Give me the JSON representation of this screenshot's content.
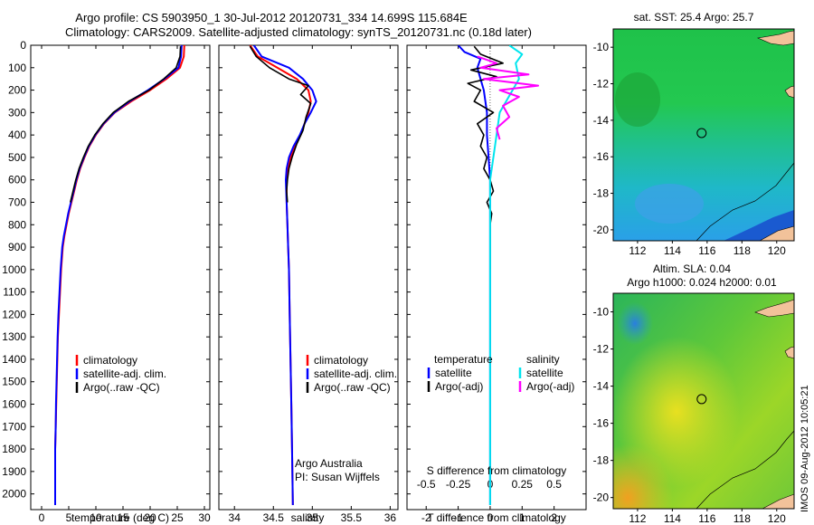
{
  "header": {
    "line1": "Argo profile: CS 5903950_1 30-Jul-2012 20120731_334 14.699S 115.684E",
    "line2": "Climatology: CARS2009. Satellite-adjusted climatology: synTS_20120731.nc (0.18d later)"
  },
  "colors": {
    "climatology": "#ff0000",
    "satellite": "#0000ff",
    "argo": "#000000",
    "sal_satellite": "#00e5ee",
    "sal_argo": "#ff00ff",
    "land": "#f2c29a"
  },
  "chart_data": [
    {
      "type": "line",
      "name": "temperature-profile",
      "xlabel": "temperature (deg C)",
      "ylabel": "",
      "xlim": [
        -2,
        31
      ],
      "ylim": [
        2070,
        0
      ],
      "xticks": [
        "0",
        "5",
        "10",
        "15",
        "20",
        "25",
        "30"
      ],
      "xtick_values": [
        0,
        5,
        10,
        15,
        20,
        25,
        30
      ],
      "yticks": [
        "0",
        "100",
        "200",
        "300",
        "400",
        "500",
        "600",
        "700",
        "800",
        "900",
        "1000",
        "1100",
        "1200",
        "1300",
        "1400",
        "1500",
        "1600",
        "1700",
        "1800",
        "1900",
        "2000"
      ],
      "ytick_values": [
        0,
        100,
        200,
        300,
        400,
        500,
        600,
        700,
        800,
        900,
        1000,
        1100,
        1200,
        1300,
        1400,
        1500,
        1600,
        1700,
        1800,
        1900,
        2000
      ],
      "legend": [
        "climatology",
        "satellite-adj. clim.",
        "Argo(..raw -QC)"
      ],
      "series": [
        {
          "name": "climatology",
          "color_key": "climatology",
          "x": [
            26.3,
            26.2,
            25.5,
            23,
            20,
            16.5,
            13.5,
            11.5,
            10,
            8.8,
            7.9,
            7.1,
            6.5,
            6.0,
            5.5,
            5.0,
            4.6,
            4.2,
            3.9,
            3.6,
            3.4,
            3.2,
            3.0,
            2.9,
            2.8,
            2.7,
            2.6,
            2.5,
            2.5,
            2.5
          ],
          "y": [
            0,
            50,
            100,
            150,
            200,
            250,
            300,
            350,
            400,
            450,
            500,
            550,
            600,
            650,
            700,
            750,
            800,
            850,
            900,
            1000,
            1100,
            1200,
            1300,
            1400,
            1500,
            1600,
            1700,
            1800,
            1900,
            2050
          ]
        },
        {
          "name": "satellite",
          "color_key": "satellite",
          "x": [
            25.8,
            25.7,
            25.2,
            22.6,
            19.6,
            16.2,
            13.4,
            11.4,
            9.9,
            8.7,
            7.8,
            7.0,
            6.4,
            5.9,
            5.4,
            4.9,
            4.5,
            4.1,
            3.8,
            3.5,
            3.3,
            3.1,
            2.95,
            2.85,
            2.75,
            2.65,
            2.6,
            2.5,
            2.5,
            2.5
          ],
          "y": [
            0,
            50,
            100,
            150,
            200,
            250,
            300,
            350,
            400,
            450,
            500,
            550,
            600,
            650,
            700,
            750,
            800,
            850,
            900,
            1000,
            1100,
            1200,
            1300,
            1400,
            1500,
            1600,
            1700,
            1800,
            1900,
            2050
          ]
        },
        {
          "name": "argo",
          "color_key": "argo",
          "x": [
            25.6,
            25.5,
            24.8,
            22.5,
            19.8,
            16,
            13.2,
            11.3,
            9.8,
            8.6,
            7.7,
            6.9,
            6.3,
            5.8,
            5.3
          ],
          "y": [
            5,
            50,
            100,
            150,
            200,
            250,
            300,
            350,
            400,
            450,
            500,
            550,
            600,
            650,
            700
          ]
        }
      ]
    },
    {
      "type": "line",
      "name": "salinity-profile",
      "xlabel": "salinity",
      "xlim": [
        33.8,
        36.1
      ],
      "ylim": [
        2070,
        0
      ],
      "xticks": [
        "34",
        "34.5",
        "35",
        "35.5",
        "36"
      ],
      "xtick_values": [
        34,
        34.5,
        35,
        35.5,
        36
      ],
      "legend": [
        "climatology",
        "satellite-adj. clim.",
        "Argo(..raw -QC)"
      ],
      "annotation": [
        "Argo Australia",
        "PI: Susan Wijffels"
      ],
      "series": [
        {
          "name": "climatology",
          "color_key": "climatology",
          "x": [
            34.2,
            34.3,
            34.55,
            34.8,
            34.95,
            34.98,
            34.95,
            34.9,
            34.85,
            34.78,
            34.72,
            34.69,
            34.67,
            34.67,
            34.68,
            34.69,
            34.7,
            34.71,
            34.72,
            34.73,
            34.74,
            34.75
          ],
          "y": [
            0,
            50,
            100,
            150,
            200,
            250,
            300,
            350,
            400,
            450,
            500,
            550,
            600,
            700,
            800,
            900,
            1000,
            1200,
            1400,
            1600,
            1800,
            2050
          ]
        },
        {
          "name": "satellite",
          "color_key": "satellite",
          "x": [
            34.25,
            34.35,
            34.7,
            34.88,
            35.0,
            35.05,
            34.98,
            34.9,
            34.84,
            34.76,
            34.7,
            34.67,
            34.66,
            34.67,
            34.68,
            34.69,
            34.7,
            34.71,
            34.72,
            34.73,
            34.74,
            34.75
          ],
          "y": [
            0,
            50,
            100,
            150,
            200,
            250,
            300,
            350,
            400,
            450,
            500,
            550,
            600,
            700,
            800,
            900,
            1000,
            1200,
            1400,
            1600,
            1800,
            2050
          ]
        },
        {
          "name": "argo",
          "color_key": "argo",
          "x": [
            34.2,
            34.28,
            34.45,
            34.7,
            34.95,
            34.85,
            34.98,
            34.92,
            34.88,
            34.8,
            34.74,
            34.7,
            34.68,
            34.67,
            34.68
          ],
          "y": [
            5,
            50,
            100,
            150,
            180,
            220,
            260,
            320,
            380,
            440,
            500,
            550,
            600,
            650,
            700
          ]
        }
      ]
    },
    {
      "type": "line",
      "name": "difference-profile",
      "xlabel": "T difference from climatology",
      "top_xlabel": "S difference from climatology",
      "xlim": [
        -2.6,
        3.0
      ],
      "ylim": [
        2070,
        0
      ],
      "xticks": [
        "-2",
        "-1",
        "0",
        "1",
        "2"
      ],
      "xtick_values": [
        -2,
        -1,
        0,
        1,
        2
      ],
      "top_xticks": [
        "-0.5",
        "-0.25",
        "0",
        "0.25",
        "0.5"
      ],
      "top_xtick_values": [
        -2,
        -1,
        0,
        1,
        2
      ],
      "legend_temperature": {
        "title": "temperature",
        "items": [
          "satellite",
          "Argo(-adj)"
        ]
      },
      "legend_salinity": {
        "title": "salinity",
        "items": [
          "satellite",
          "Argo(-adj)"
        ]
      },
      "series": [
        {
          "name": "temperature-satellite",
          "color_key": "satellite",
          "x": [
            -1.0,
            -0.8,
            -0.3,
            -0.4,
            -0.3,
            -0.2,
            -0.1,
            -0.1,
            -0.05,
            0,
            0,
            0,
            0,
            0,
            0
          ],
          "y": [
            0,
            30,
            60,
            100,
            150,
            200,
            300,
            400,
            500,
            600,
            800,
            1000,
            1400,
            1800,
            2050
          ]
        },
        {
          "name": "temperature-argo",
          "color_key": "argo",
          "x": [
            -0.5,
            -0.3,
            0.4,
            -0.6,
            0.2,
            -0.7,
            -0.3,
            -0.5,
            0.1,
            -0.4,
            -0.2,
            -0.3,
            -0.1,
            -0.2,
            0,
            0.1,
            -0.1,
            0.05,
            0,
            0,
            0
          ],
          "y": [
            5,
            40,
            80,
            110,
            140,
            170,
            200,
            250,
            300,
            350,
            400,
            450,
            500,
            550,
            600,
            650,
            700,
            750,
            800,
            900,
            1000
          ]
        },
        {
          "name": "salinity-satellite",
          "color_key": "sal_satellite",
          "x": [
            0.6,
            1.0,
            0.8,
            0.9,
            0.7,
            0.5,
            0.3,
            0.2,
            0.1,
            0,
            0,
            0,
            0
          ],
          "y": [
            0,
            40,
            80,
            150,
            200,
            250,
            300,
            400,
            500,
            600,
            800,
            1400,
            2050
          ]
        },
        {
          "name": "salinity-argo",
          "color_key": "sal_argo",
          "x": [
            -0.4,
            0.2,
            -0.3,
            1.2,
            -0.2,
            1.5,
            0.3,
            0.9,
            0.4,
            0.6,
            0.2,
            0.3
          ],
          "y": [
            50,
            80,
            100,
            130,
            150,
            180,
            200,
            230,
            270,
            320,
            370,
            420
          ]
        }
      ]
    }
  ],
  "maps": [
    {
      "name": "sst-map",
      "title": "sat. SST: 25.4 Argo: 25.7",
      "xticks": [
        "112",
        "114",
        "116",
        "118",
        "120"
      ],
      "xtick_values": [
        112,
        114,
        116,
        118,
        120
      ],
      "yticks": [
        "-10",
        "-12",
        "-14",
        "-16",
        "-18",
        "-20"
      ],
      "ytick_values": [
        -10,
        -12,
        -14,
        -16,
        -18,
        -20
      ],
      "xlim": [
        110.6,
        121.0
      ],
      "ylim": [
        -20.6,
        -9.0
      ],
      "argo_position": [
        115.684,
        -14.699
      ]
    },
    {
      "name": "sla-map",
      "title_line1": "Altim. SLA: 0.04",
      "title_line2": "Argo h1000: 0.024 h2000: 0.01",
      "xticks": [
        "112",
        "114",
        "116",
        "118",
        "120"
      ],
      "xtick_values": [
        112,
        114,
        116,
        118,
        120
      ],
      "yticks": [
        "-10",
        "-12",
        "-14",
        "-16",
        "-18",
        "-20"
      ],
      "ytick_values": [
        -10,
        -12,
        -14,
        -16,
        -18,
        -20
      ],
      "xlim": [
        110.6,
        121.0
      ],
      "ylim": [
        -20.6,
        -9.0
      ],
      "argo_position": [
        115.684,
        -14.699
      ]
    }
  ],
  "footer": {
    "stamp": "IMOS 09-Aug-2012 10:05:21"
  }
}
